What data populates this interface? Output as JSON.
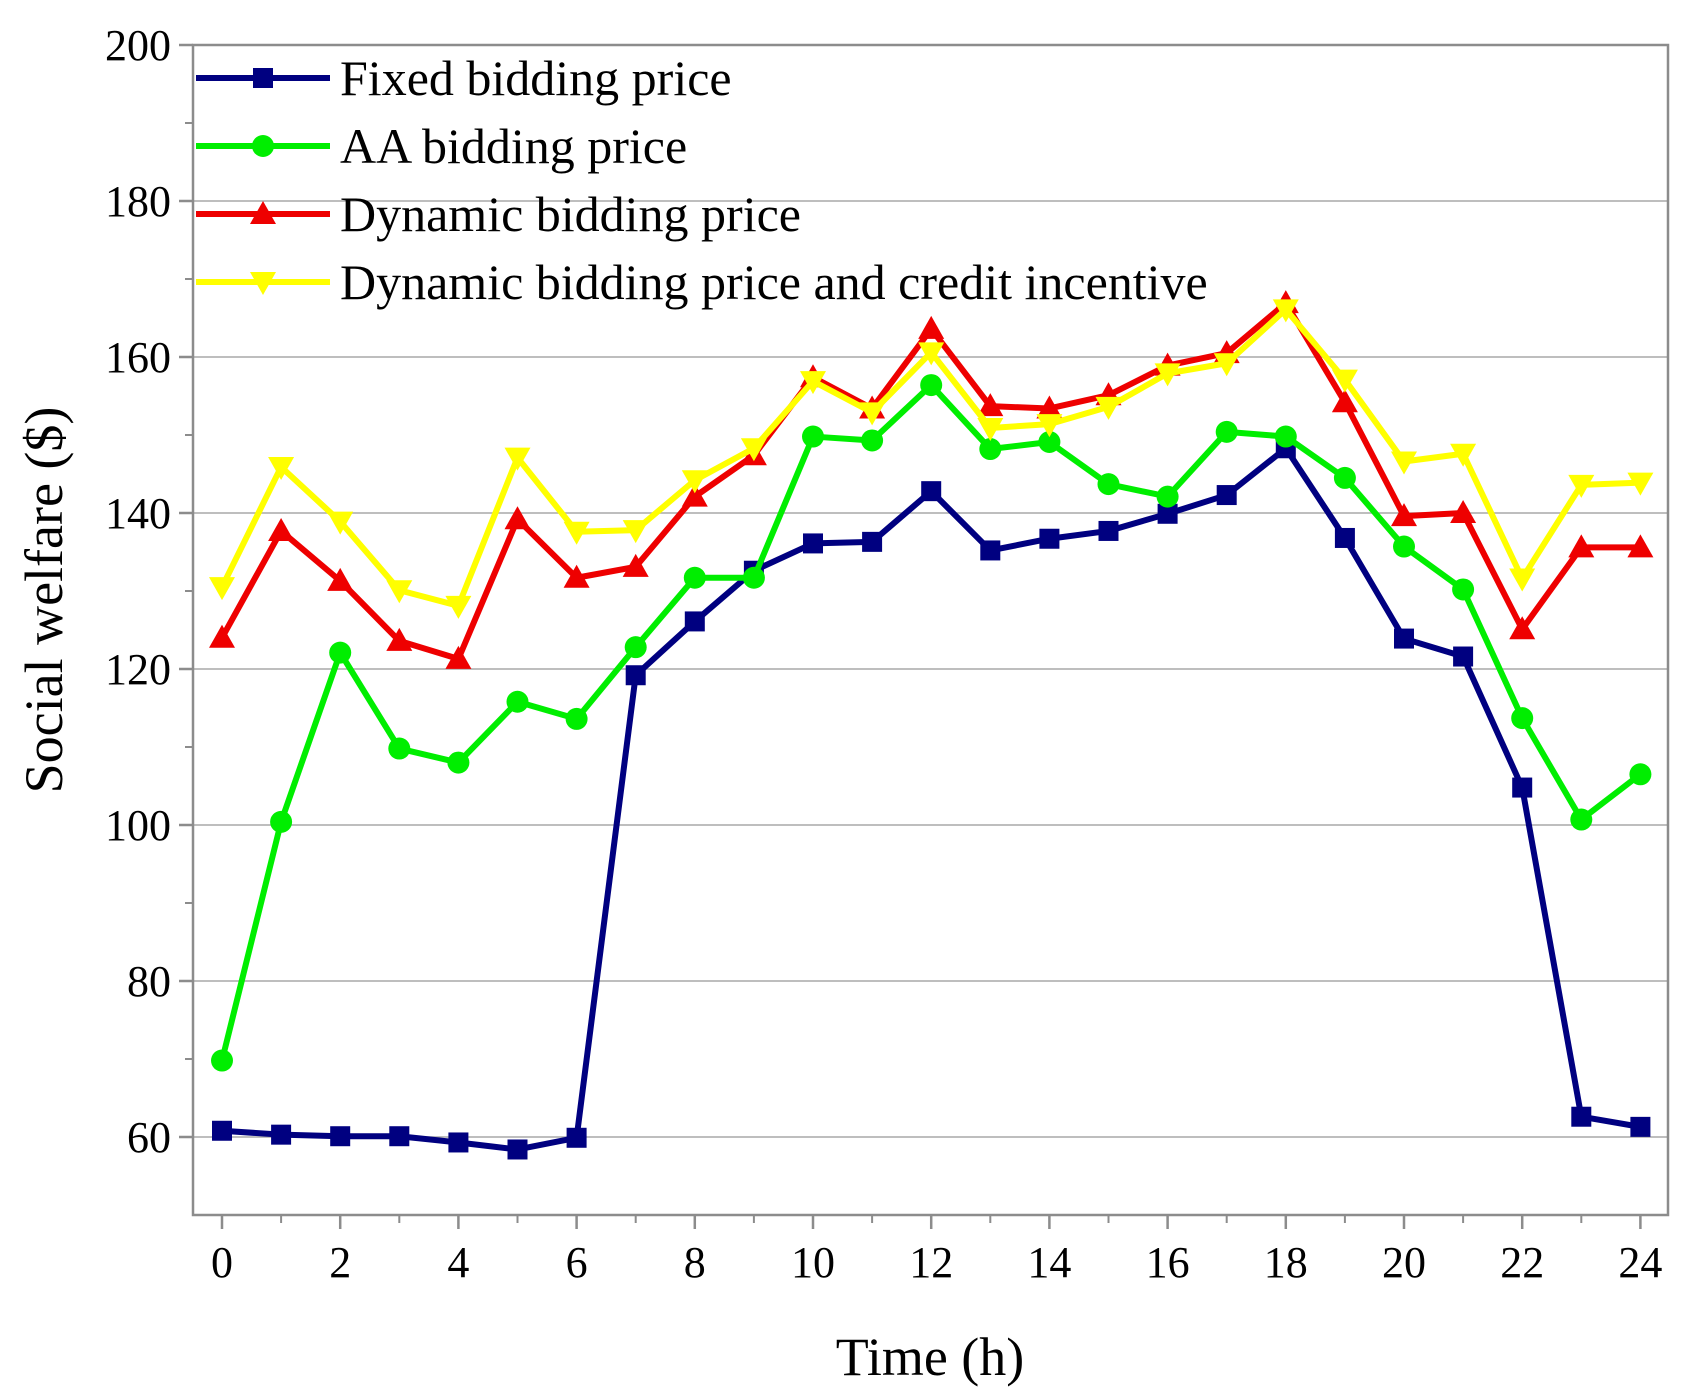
{
  "chart_data": {
    "type": "line",
    "title": "",
    "xlabel": "Time (h)",
    "ylabel": "Social welfare ($)",
    "xlim": [
      -0.5,
      24.5
    ],
    "ylim": [
      50,
      200
    ],
    "x_ticks": [
      0,
      2,
      4,
      6,
      8,
      10,
      12,
      14,
      16,
      18,
      20,
      22,
      24
    ],
    "y_ticks": [
      60,
      80,
      100,
      120,
      140,
      160,
      180,
      200
    ],
    "grid": "horizontal",
    "legend_position": "top-left",
    "x": [
      0,
      1,
      2,
      3,
      4,
      5,
      6,
      7,
      8,
      9,
      10,
      11,
      12,
      13,
      14,
      15,
      16,
      17,
      18,
      19,
      20,
      21,
      22,
      23,
      24
    ],
    "series": [
      {
        "name": "Fixed bidding price",
        "color": "#000080",
        "marker": "square",
        "values": [
          60.8,
          60.3,
          60.1,
          60.1,
          59.3,
          58.4,
          59.9,
          119.2,
          126.1,
          132.6,
          136.1,
          136.3,
          142.8,
          135.2,
          136.7,
          137.7,
          139.9,
          142.3,
          148.3,
          136.8,
          123.9,
          121.6,
          104.8,
          62.6,
          61.3
        ]
      },
      {
        "name": "AA bidding price",
        "color": "#00ee00",
        "marker": "circle",
        "values": [
          69.8,
          100.4,
          122.1,
          109.8,
          108.0,
          115.8,
          113.6,
          122.8,
          131.7,
          131.7,
          149.8,
          149.3,
          156.4,
          148.2,
          149.1,
          143.7,
          142.1,
          150.4,
          149.8,
          144.5,
          135.7,
          130.2,
          113.7,
          100.7,
          106.5
        ]
      },
      {
        "name": "Dynamic bidding price",
        "color": "#ee0000",
        "marker": "triangle-up",
        "values": [
          124.0,
          137.7,
          131.3,
          123.6,
          121.3,
          139.2,
          131.7,
          133.1,
          142.1,
          147.4,
          157.4,
          153.4,
          163.6,
          153.7,
          153.4,
          155.1,
          158.9,
          160.5,
          166.9,
          154.2,
          139.6,
          140.0,
          125.1,
          135.6,
          135.6
        ]
      },
      {
        "name": "Dynamic bidding price and credit incentive",
        "color": "#ffff00",
        "marker": "triangle-down",
        "values": [
          130.5,
          145.9,
          138.9,
          130.1,
          128.1,
          147.1,
          137.6,
          137.8,
          144.2,
          148.3,
          156.9,
          152.9,
          160.6,
          150.9,
          151.4,
          153.6,
          157.9,
          159.2,
          166.1,
          157.1,
          146.6,
          147.6,
          131.6,
          143.6,
          143.9
        ]
      }
    ]
  }
}
